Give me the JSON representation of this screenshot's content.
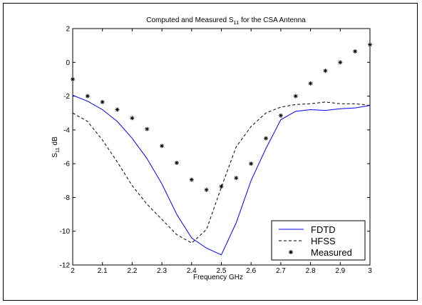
{
  "chart_data": {
    "type": "line",
    "title": "Computed and Measured S11 for the CSA Antenna",
    "title_parts": {
      "prefix": "Computed and Measured S",
      "subscript": "11",
      "suffix": " for the CSA Antenna"
    },
    "xlabel": "Frequency GHz",
    "ylabel": "S11 dB",
    "ylabel_parts": {
      "prefix": "S",
      "subscript": "11",
      "suffix": " dB"
    },
    "xlim": [
      2,
      3
    ],
    "ylim": [
      -12,
      2
    ],
    "xticks": [
      2,
      2.1,
      2.2,
      2.3,
      2.4,
      2.5,
      2.6,
      2.7,
      2.8,
      2.9,
      3
    ],
    "xtick_labels": [
      "2",
      "2.1",
      "2.2",
      "2.3",
      "2.4",
      "2.5",
      "2.6",
      "2.7",
      "2.8",
      "2.9",
      "3"
    ],
    "yticks": [
      -12,
      -10,
      -8,
      -6,
      -4,
      -2,
      0,
      2
    ],
    "ytick_labels": [
      "-12",
      "-10",
      "-8",
      "-6",
      "-4",
      "-2",
      "0",
      "2"
    ],
    "grid": false,
    "legend_position": "bottom-right",
    "series": [
      {
        "name": "FDTD",
        "style": "solid",
        "color": "#0000ff",
        "marker": "none",
        "x": [
          2.0,
          2.05,
          2.1,
          2.15,
          2.2,
          2.25,
          2.3,
          2.35,
          2.4,
          2.45,
          2.5,
          2.55,
          2.6,
          2.65,
          2.7,
          2.75,
          2.8,
          2.85,
          2.9,
          2.95,
          3.0
        ],
        "y": [
          -1.95,
          -2.3,
          -2.8,
          -3.5,
          -4.5,
          -5.7,
          -7.2,
          -9.0,
          -10.4,
          -11.0,
          -11.4,
          -9.5,
          -7.0,
          -5.1,
          -3.4,
          -2.9,
          -2.8,
          -2.85,
          -2.75,
          -2.7,
          -2.55
        ]
      },
      {
        "name": "HFSS",
        "style": "dashed",
        "color": "#000000",
        "marker": "none",
        "x": [
          2.0,
          2.05,
          2.1,
          2.15,
          2.2,
          2.25,
          2.3,
          2.35,
          2.4,
          2.45,
          2.5,
          2.55,
          2.6,
          2.65,
          2.7,
          2.75,
          2.8,
          2.85,
          2.9,
          2.95,
          3.0
        ],
        "y": [
          -3.0,
          -3.5,
          -4.6,
          -5.9,
          -7.3,
          -8.4,
          -9.3,
          -10.2,
          -10.7,
          -9.9,
          -7.4,
          -5.0,
          -3.8,
          -3.0,
          -2.65,
          -2.5,
          -2.45,
          -2.35,
          -2.45,
          -2.45,
          -2.55
        ]
      },
      {
        "name": "Measured",
        "style": "none",
        "color": "#000000",
        "marker": "asterisk",
        "x": [
          2.0,
          2.05,
          2.1,
          2.15,
          2.2,
          2.25,
          2.3,
          2.35,
          2.4,
          2.45,
          2.5,
          2.55,
          2.6,
          2.65,
          2.7,
          2.75,
          2.8,
          2.85,
          2.9,
          2.95,
          3.0
        ],
        "y": [
          -1.0,
          -2.0,
          -2.35,
          -2.8,
          -3.3,
          -3.95,
          -4.95,
          -5.95,
          -6.95,
          -7.55,
          -7.35,
          -6.85,
          -6.0,
          -4.5,
          -3.15,
          -2.0,
          -1.25,
          -0.5,
          0.0,
          0.65,
          1.05
        ]
      }
    ]
  }
}
